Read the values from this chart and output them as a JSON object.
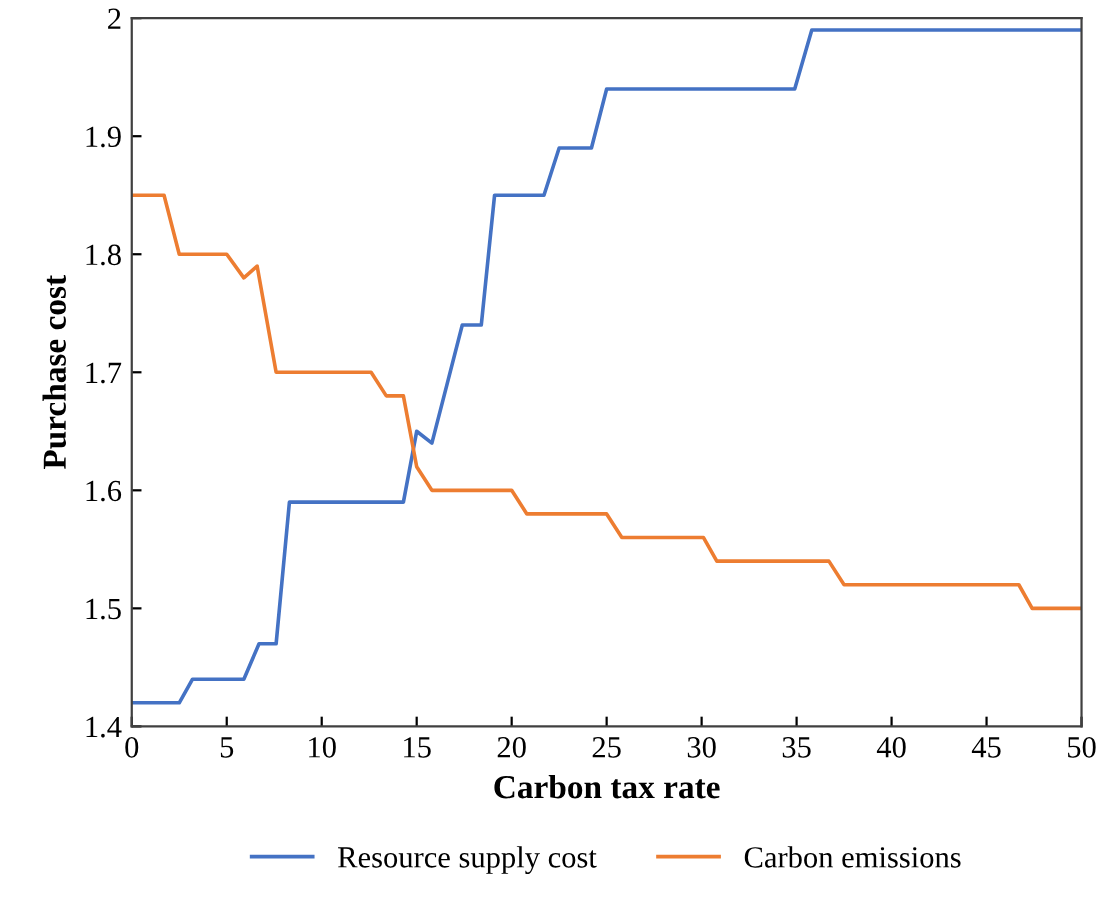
{
  "chart_data": {
    "type": "line",
    "xlabel": "Carbon tax rate",
    "ylabel": "Purchase cost",
    "xlim": [
      0,
      50
    ],
    "xticks": [
      0,
      5,
      10,
      15,
      20,
      25,
      30,
      35,
      40,
      45,
      50
    ],
    "ylim": [
      1.4,
      2.0
    ],
    "yticks": [
      1.4,
      1.5,
      1.6,
      1.7,
      1.8,
      1.9,
      2
    ],
    "grid": false,
    "legend": "bottom",
    "marker": "none",
    "line_style": "solid",
    "series": [
      {
        "name": "Resource supply cost",
        "color": "#4472c4",
        "x": [
          0,
          2.5,
          3.2,
          5.9,
          6.7,
          7.6,
          8.3,
          14.3,
          15.0,
          15.8,
          16.6,
          17.4,
          18.4,
          19.1,
          21.7,
          22.5,
          24.2,
          25.0,
          34.9,
          35.8,
          50
        ],
        "values": [
          1.42,
          1.42,
          1.44,
          1.44,
          1.47,
          1.47,
          1.59,
          1.59,
          1.65,
          1.64,
          1.69,
          1.74,
          1.74,
          1.85,
          1.85,
          1.89,
          1.89,
          1.94,
          1.94,
          1.99,
          1.99
        ]
      },
      {
        "name": "Carbon emissions",
        "color": "#ed7d31",
        "x": [
          0,
          1.7,
          2.5,
          5.0,
          5.9,
          6.6,
          7.6,
          12.6,
          13.4,
          14.3,
          15.0,
          15.8,
          20.0,
          20.8,
          25.0,
          25.8,
          30.1,
          30.8,
          36.7,
          37.5,
          46.7,
          47.4,
          50
        ],
        "values": [
          1.85,
          1.85,
          1.8,
          1.8,
          1.78,
          1.79,
          1.7,
          1.7,
          1.68,
          1.68,
          1.62,
          1.6,
          1.6,
          1.58,
          1.58,
          1.56,
          1.56,
          1.54,
          1.54,
          1.52,
          1.52,
          1.5,
          1.5
        ]
      }
    ]
  }
}
